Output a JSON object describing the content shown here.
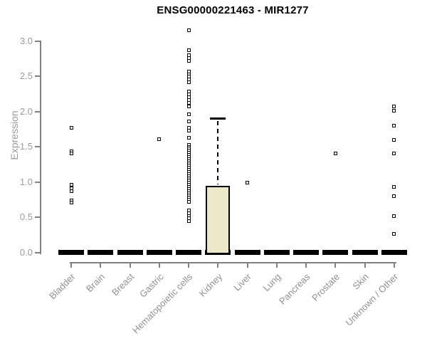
{
  "chart_data": {
    "type": "boxplot",
    "title": "ENSG00000221463 - MIR1277",
    "xlabel": "",
    "ylabel": "Expression",
    "ylim": [
      0.0,
      3.2
    ],
    "yticks": [
      0.0,
      0.5,
      1.0,
      1.5,
      2.0,
      2.5,
      3.0
    ],
    "ytick_labels": [
      "0.0",
      "0.5",
      "1.0",
      "1.5",
      "2.0",
      "2.5",
      "3.0"
    ],
    "grid": false,
    "legend": "none",
    "categories": [
      "Bladder",
      "Brain",
      "Breast",
      "Gastric",
      "Hematopoietic cells",
      "Kidney",
      "Liver",
      "Lung",
      "Pancreas",
      "Prostate",
      "Skin",
      "Unknown / Other"
    ],
    "groups": [
      {
        "name": "Bladder",
        "median": 0.0,
        "points": [
          1.77,
          1.43,
          1.4,
          0.96,
          0.91,
          0.87,
          0.74,
          0.71
        ]
      },
      {
        "name": "Brain",
        "median": 0.0,
        "points": []
      },
      {
        "name": "Breast",
        "median": 0.0,
        "points": []
      },
      {
        "name": "Gastric",
        "median": 0.0,
        "points": [
          1.61
        ]
      },
      {
        "name": "Hematopoietic cells",
        "median": 0.0,
        "points": [
          3.15,
          2.87,
          2.8,
          2.76,
          2.72,
          2.57,
          2.53,
          2.49,
          2.45,
          2.41,
          2.28,
          2.24,
          2.2,
          2.16,
          2.12,
          2.07,
          1.96,
          1.86,
          1.77,
          1.73,
          1.63,
          1.53,
          1.5,
          1.47,
          1.44,
          1.41,
          1.38,
          1.35,
          1.32,
          1.29,
          1.26,
          1.23,
          1.2,
          1.17,
          1.14,
          1.11,
          1.08,
          1.05,
          1.02,
          0.99,
          0.96,
          0.93,
          0.9,
          0.87,
          0.84,
          0.81,
          0.78,
          0.75,
          0.72,
          0.6,
          0.56,
          0.52,
          0.48,
          0.44
        ]
      },
      {
        "name": "Kidney",
        "median": 0.0,
        "box": {
          "q1": 0.0,
          "q3": 0.94,
          "whisker_low": 0.0,
          "whisker_high": 1.9
        },
        "points": []
      },
      {
        "name": "Liver",
        "median": 0.0,
        "points": [
          0.99
        ]
      },
      {
        "name": "Lung",
        "median": 0.0,
        "points": []
      },
      {
        "name": "Pancreas",
        "median": 0.0,
        "points": []
      },
      {
        "name": "Prostate",
        "median": 0.0,
        "points": [
          1.4
        ]
      },
      {
        "name": "Skin",
        "median": 0.0,
        "points": []
      },
      {
        "name": "Unknown / Other",
        "median": 0.0,
        "points": [
          2.07,
          2.01,
          1.8,
          1.6,
          1.4,
          0.93,
          0.8,
          0.52,
          0.26
        ]
      }
    ],
    "colors": {
      "box_fill": "#ECE8CA",
      "box_border": "#000000",
      "median_bar": "#000000",
      "point": "#000000",
      "axis": "#808080",
      "tick_label": "#9B9B9B",
      "category_label": "#919191",
      "title": "#000000",
      "background": "#FFFFFF"
    }
  }
}
